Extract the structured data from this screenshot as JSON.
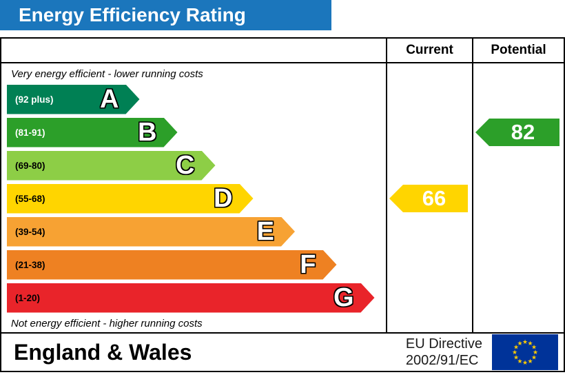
{
  "title": "Energy Efficiency Rating",
  "columns": {
    "current": "Current",
    "potential": "Potential"
  },
  "chart_data": {
    "type": "bar",
    "chart_kind": "energy-efficiency-rating-bands",
    "title": "Energy Efficiency Rating",
    "top_label": "Very energy efficient - lower running costs",
    "bottom_label": "Not energy efficient - higher running costs",
    "categories": [
      "A",
      "B",
      "C",
      "D",
      "E",
      "F",
      "G"
    ],
    "bands": [
      {
        "letter": "A",
        "range": "(92 plus)",
        "color": "#008054",
        "width_pct": 35,
        "range_text_color": "#ffffff"
      },
      {
        "letter": "B",
        "range": "(81-91)",
        "color": "#2c9f29",
        "width_pct": 45,
        "range_text_color": "#ffffff"
      },
      {
        "letter": "C",
        "range": "(69-80)",
        "color": "#8dce46",
        "width_pct": 55,
        "range_text_color": "#000000"
      },
      {
        "letter": "D",
        "range": "(55-68)",
        "color": "#ffd500",
        "width_pct": 65,
        "range_text_color": "#000000"
      },
      {
        "letter": "E",
        "range": "(39-54)",
        "color": "#f7a233",
        "width_pct": 76,
        "range_text_color": "#000000"
      },
      {
        "letter": "F",
        "range": "(21-38)",
        "color": "#ee8122",
        "width_pct": 87,
        "range_text_color": "#000000"
      },
      {
        "letter": "G",
        "range": "(1-20)",
        "color": "#e9242a",
        "width_pct": 97,
        "range_text_color": "#000000"
      }
    ],
    "current": {
      "label": "Current",
      "value": "66",
      "band": "D",
      "band_index": 3,
      "color": "#ffd500"
    },
    "potential": {
      "label": "Potential",
      "value": "82",
      "band": "B",
      "band_index": 1,
      "color": "#2c9f29"
    }
  },
  "footer": {
    "region": "England & Wales",
    "directive_line1": "EU Directive",
    "directive_line2": "2002/91/EC",
    "flag_star": "★"
  },
  "colors": {
    "header_bg": "#1b76bc",
    "border": "#000000",
    "flag_bg": "#003399",
    "flag_star": "#ffcc00"
  }
}
